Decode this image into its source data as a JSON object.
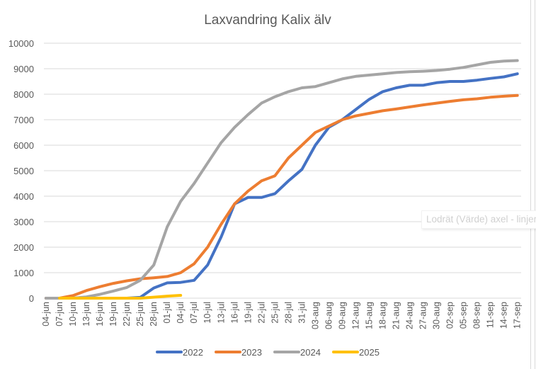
{
  "chart_data": {
    "type": "line",
    "title": "Laxvandring Kalix älv",
    "xlabel": "",
    "ylabel": "",
    "ylim": [
      0,
      10000
    ],
    "yticks": [
      0,
      1000,
      2000,
      3000,
      4000,
      5000,
      6000,
      7000,
      8000,
      9000,
      10000
    ],
    "grid": true,
    "legend_position": "bottom",
    "categories": [
      "04-jun",
      "07-jun",
      "10-jun",
      "13-jun",
      "16-jun",
      "19-jun",
      "22-jun",
      "25-jun",
      "28-jun",
      "01-jul",
      "04-jul",
      "07-jul",
      "10-jul",
      "13-jul",
      "16-jul",
      "19-jul",
      "22-jul",
      "25-jul",
      "28-jul",
      "31-jul",
      "03-aug",
      "06-aug",
      "09-aug",
      "12-aug",
      "15-aug",
      "18-aug",
      "21-aug",
      "24-aug",
      "27-aug",
      "30-aug",
      "02-sep",
      "05-sep",
      "08-sep",
      "11-sep",
      "14-sep",
      "17-sep"
    ],
    "series": [
      {
        "name": "2022",
        "color": "#4472c4",
        "values": [
          0,
          0,
          0,
          0,
          0,
          0,
          0,
          30,
          400,
          600,
          620,
          700,
          1300,
          2400,
          3700,
          3950,
          3950,
          4100,
          4600,
          5050,
          6000,
          6700,
          7000,
          7400,
          7800,
          8100,
          8250,
          8350,
          8350,
          8450,
          8500,
          8500,
          8550,
          8620,
          8680,
          8800
        ]
      },
      {
        "name": "2023",
        "color": "#ed7d31",
        "values": [
          0,
          0,
          100,
          300,
          450,
          580,
          680,
          760,
          800,
          850,
          1000,
          1350,
          2000,
          2900,
          3700,
          4200,
          4600,
          4800,
          5500,
          6000,
          6500,
          6750,
          7000,
          7150,
          7250,
          7350,
          7420,
          7500,
          7580,
          7650,
          7720,
          7780,
          7820,
          7880,
          7920,
          7950
        ]
      },
      {
        "name": "2024",
        "color": "#a5a5a5",
        "values": [
          0,
          0,
          0,
          50,
          150,
          280,
          420,
          700,
          1300,
          2800,
          3800,
          4500,
          5300,
          6100,
          6700,
          7200,
          7650,
          7900,
          8100,
          8250,
          8300,
          8450,
          8600,
          8700,
          8750,
          8800,
          8850,
          8880,
          8900,
          8930,
          8980,
          9050,
          9150,
          9250,
          9300,
          9320
        ]
      },
      {
        "name": "2025",
        "color": "#ffc000",
        "values": [
          null,
          0,
          0,
          0,
          0,
          0,
          0,
          0,
          40,
          80,
          110,
          null,
          null,
          null,
          null,
          null,
          null,
          null,
          null,
          null,
          null,
          null,
          null,
          null,
          null,
          null,
          null,
          null,
          null,
          null,
          null,
          null,
          null,
          null,
          null,
          null
        ]
      }
    ]
  },
  "tooltip": "Lodrät (Värde) axel - linjer"
}
